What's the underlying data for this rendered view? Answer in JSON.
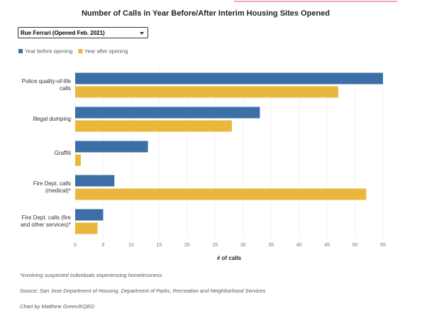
{
  "chart_data": {
    "type": "hbar",
    "title": "Number of Calls in Year Before/After Interim Housing Sites Opened",
    "dropdown": "Rue Ferrari (Opened Feb. 2021)",
    "categories": [
      "Police quality-of-life calls",
      "Illegal dumping",
      "Graffiti",
      "Fire Dept. calls (medical)*",
      "Fire Dept. calls (fire and other services)*"
    ],
    "series": [
      {
        "name": "Year before opening",
        "color": "#3b6fa6",
        "values": [
          55,
          33,
          13,
          7,
          5
        ]
      },
      {
        "name": "Year after opening",
        "color": "#e9b73c",
        "values": [
          47,
          28,
          1,
          52,
          4
        ]
      }
    ],
    "xlim": [
      0,
      55
    ],
    "xticks": [
      0,
      5,
      10,
      15,
      20,
      25,
      30,
      35,
      40,
      45,
      50,
      55
    ],
    "xlabel": "# of calls",
    "grid": true,
    "notes": [
      "*Involving suspected individuals experiencing homelessness",
      "Source: San Jose Department of Housing, Department of Parks, Recreation and Neighborhood Services",
      "Chart by Matthew Green/KQED"
    ]
  }
}
